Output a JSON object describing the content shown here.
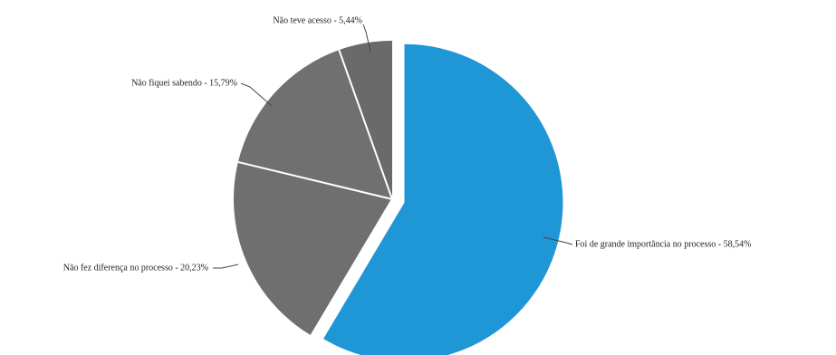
{
  "chart_data": {
    "type": "pie",
    "slices": [
      {
        "label": "Foi de grande importância no processo - 58,54%",
        "value": 58.54,
        "color": "#1f96d6",
        "exploded": true
      },
      {
        "label": "Não fez diferença no processo - 20,23%",
        "value": 20.23,
        "color": "#6f6f6f",
        "exploded": false
      },
      {
        "label": "Não fiquei sabendo - 15,79%",
        "value": 15.79,
        "color": "#707070",
        "exploded": false
      },
      {
        "label": "Não teve acesso - 5,44%",
        "value": 5.44,
        "color": "#6a6a6a",
        "exploded": false
      }
    ]
  }
}
